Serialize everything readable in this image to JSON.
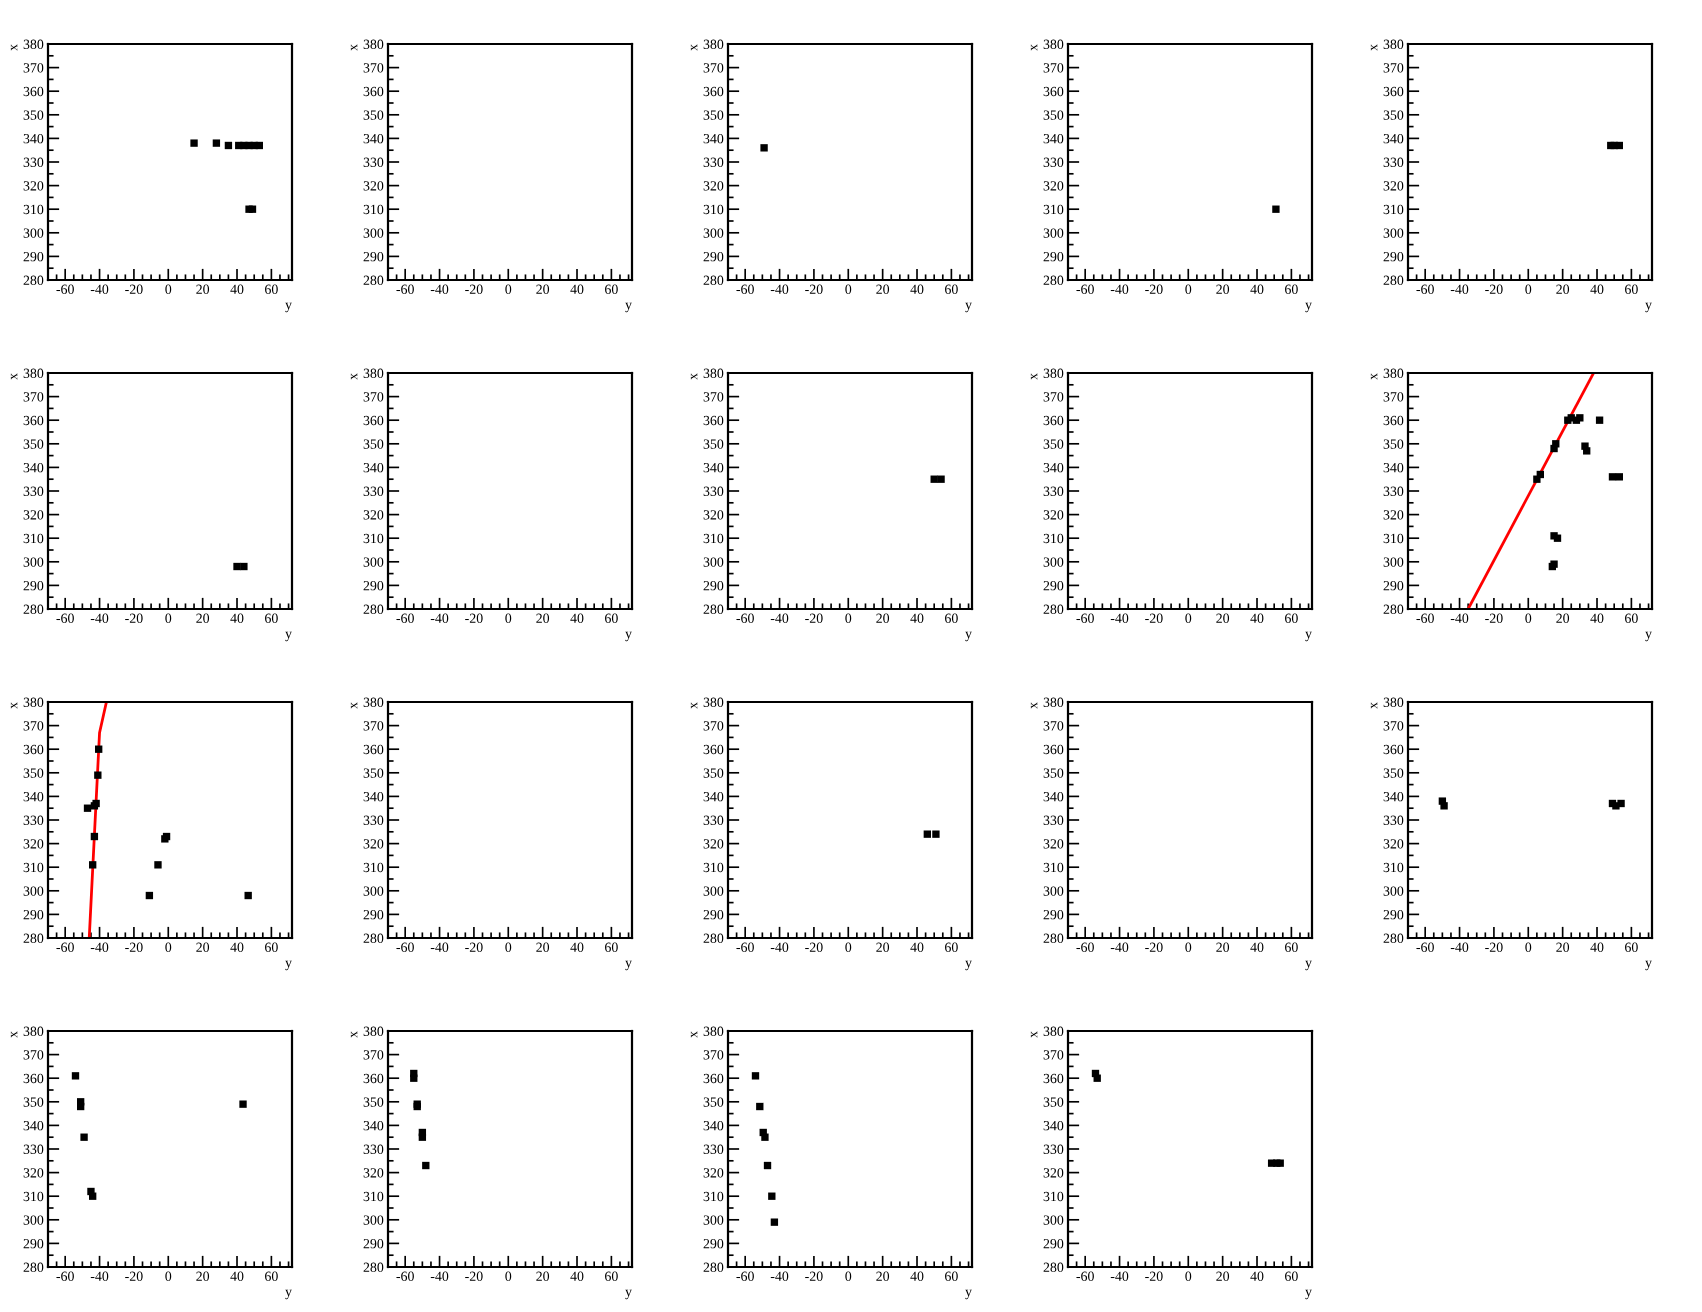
{
  "chart_data": [
    {
      "type": "scatter",
      "xlabel": "y",
      "ylabel": "x",
      "xlim": [
        -70,
        72
      ],
      "ylim": [
        280,
        380
      ],
      "xticks": [
        -60,
        -40,
        -20,
        0,
        20,
        40,
        60
      ],
      "yticks": [
        280,
        290,
        300,
        310,
        320,
        330,
        340,
        350,
        360,
        370,
        380
      ],
      "grid": false,
      "series": [
        {
          "marker": "square",
          "color": "#000000",
          "x": [
            15,
            28,
            35,
            41,
            44,
            47,
            50,
            53,
            47,
            49
          ],
          "values": [
            338,
            338,
            337,
            337,
            337,
            337,
            337,
            337,
            310,
            310
          ]
        }
      ]
    },
    {
      "type": "scatter",
      "xlabel": "y",
      "ylabel": "x",
      "xlim": [
        -70,
        72
      ],
      "ylim": [
        280,
        380
      ],
      "xticks": [
        -60,
        -40,
        -20,
        0,
        20,
        40,
        60
      ],
      "yticks": [
        280,
        290,
        300,
        310,
        320,
        330,
        340,
        350,
        360,
        370,
        380
      ],
      "grid": false
    },
    {
      "type": "scatter",
      "xlabel": "y",
      "ylabel": "x",
      "xlim": [
        -70,
        72
      ],
      "ylim": [
        280,
        380
      ],
      "xticks": [
        -60,
        -40,
        -20,
        0,
        20,
        40,
        60
      ],
      "yticks": [
        280,
        290,
        300,
        310,
        320,
        330,
        340,
        350,
        360,
        370,
        380
      ],
      "grid": false,
      "series": [
        {
          "marker": "square",
          "color": "#000000",
          "x": [
            -49
          ],
          "values": [
            336
          ]
        }
      ]
    },
    {
      "type": "scatter",
      "xlabel": "y",
      "ylabel": "x",
      "xlim": [
        -70,
        72
      ],
      "ylim": [
        280,
        380
      ],
      "xticks": [
        -60,
        -40,
        -20,
        0,
        20,
        40,
        60
      ],
      "yticks": [
        280,
        290,
        300,
        310,
        320,
        330,
        340,
        350,
        360,
        370,
        380
      ],
      "grid": false,
      "series": [
        {
          "marker": "square",
          "color": "#000000",
          "x": [
            51
          ],
          "values": [
            310
          ]
        }
      ]
    },
    {
      "type": "scatter",
      "xlabel": "y",
      "ylabel": "x",
      "xlim": [
        -70,
        72
      ],
      "ylim": [
        280,
        380
      ],
      "xticks": [
        -60,
        -40,
        -20,
        0,
        20,
        40,
        60
      ],
      "yticks": [
        280,
        290,
        300,
        310,
        320,
        330,
        340,
        350,
        360,
        370,
        380
      ],
      "grid": false,
      "series": [
        {
          "marker": "square",
          "color": "#000000",
          "x": [
            48,
            50,
            53
          ],
          "values": [
            337,
            337,
            337
          ]
        }
      ]
    },
    {
      "type": "scatter",
      "xlabel": "y",
      "ylabel": "x",
      "xlim": [
        -70,
        72
      ],
      "ylim": [
        280,
        380
      ],
      "xticks": [
        -60,
        -40,
        -20,
        0,
        20,
        40,
        60
      ],
      "yticks": [
        280,
        290,
        300,
        310,
        320,
        330,
        340,
        350,
        360,
        370,
        380
      ],
      "grid": false,
      "series": [
        {
          "marker": "square",
          "color": "#000000",
          "x": [
            40,
            44
          ],
          "values": [
            298,
            298
          ]
        }
      ]
    },
    {
      "type": "scatter",
      "xlabel": "y",
      "ylabel": "x",
      "xlim": [
        -70,
        72
      ],
      "ylim": [
        280,
        380
      ],
      "xticks": [
        -60,
        -40,
        -20,
        0,
        20,
        40,
        60
      ],
      "yticks": [
        280,
        290,
        300,
        310,
        320,
        330,
        340,
        350,
        360,
        370,
        380
      ],
      "grid": false
    },
    {
      "type": "scatter",
      "xlabel": "y",
      "ylabel": "x",
      "xlim": [
        -70,
        72
      ],
      "ylim": [
        280,
        380
      ],
      "xticks": [
        -60,
        -40,
        -20,
        0,
        20,
        40,
        60
      ],
      "yticks": [
        280,
        290,
        300,
        310,
        320,
        330,
        340,
        350,
        360,
        370,
        380
      ],
      "grid": false,
      "series": [
        {
          "marker": "square",
          "color": "#000000",
          "x": [
            50,
            54
          ],
          "values": [
            335,
            335
          ]
        }
      ]
    },
    {
      "type": "scatter",
      "xlabel": "y",
      "ylabel": "x",
      "xlim": [
        -70,
        72
      ],
      "ylim": [
        280,
        380
      ],
      "xticks": [
        -60,
        -40,
        -20,
        0,
        20,
        40,
        60
      ],
      "yticks": [
        280,
        290,
        300,
        310,
        320,
        330,
        340,
        350,
        360,
        370,
        380
      ],
      "grid": false
    },
    {
      "type": "scatter",
      "xlabel": "y",
      "ylabel": "x",
      "xlim": [
        -70,
        72
      ],
      "ylim": [
        280,
        380
      ],
      "xticks": [
        -60,
        -40,
        -20,
        0,
        20,
        40,
        60
      ],
      "yticks": [
        280,
        290,
        300,
        310,
        320,
        330,
        340,
        350,
        360,
        370,
        380
      ],
      "grid": false,
      "series": [
        {
          "marker": "square",
          "color": "#000000",
          "x": [
            5,
            7,
            15,
            16,
            23,
            25,
            28,
            30,
            33,
            34,
            41.5,
            49,
            53,
            15,
            17,
            14,
            15
          ],
          "values": [
            335,
            337,
            348,
            350,
            360,
            361,
            360,
            361,
            349,
            347,
            360,
            336,
            336,
            311,
            310,
            298,
            299
          ]
        },
        {
          "type": "line",
          "marker": "none",
          "color": "#ff0000",
          "x": [
            -35,
            38
          ],
          "values": [
            280,
            380
          ]
        }
      ]
    },
    {
      "type": "scatter",
      "xlabel": "y",
      "ylabel": "x",
      "xlim": [
        -70,
        72
      ],
      "ylim": [
        280,
        380
      ],
      "xticks": [
        -60,
        -40,
        -20,
        0,
        20,
        40,
        60
      ],
      "yticks": [
        280,
        290,
        300,
        310,
        320,
        330,
        340,
        350,
        360,
        370,
        380
      ],
      "grid": false,
      "series": [
        {
          "marker": "square",
          "color": "#000000",
          "x": [
            -47,
            -43,
            -42,
            -40.5,
            -41,
            -43,
            -44,
            -6,
            -2,
            -1,
            -11,
            46.5
          ],
          "values": [
            335,
            336,
            337,
            360,
            349,
            323,
            311,
            311,
            322,
            323,
            298,
            298
          ]
        },
        {
          "type": "line",
          "marker": "none",
          "color": "#ff0000",
          "x": [
            -46,
            -40,
            -36
          ],
          "values": [
            280,
            367,
            380
          ]
        }
      ]
    },
    {
      "type": "scatter",
      "xlabel": "y",
      "ylabel": "x",
      "xlim": [
        -70,
        72
      ],
      "ylim": [
        280,
        380
      ],
      "xticks": [
        -60,
        -40,
        -20,
        0,
        20,
        40,
        60
      ],
      "yticks": [
        280,
        290,
        300,
        310,
        320,
        330,
        340,
        350,
        360,
        370,
        380
      ],
      "grid": false
    },
    {
      "type": "scatter",
      "xlabel": "y",
      "ylabel": "x",
      "xlim": [
        -70,
        72
      ],
      "ylim": [
        280,
        380
      ],
      "xticks": [
        -60,
        -40,
        -20,
        0,
        20,
        40,
        60
      ],
      "yticks": [
        280,
        290,
        300,
        310,
        320,
        330,
        340,
        350,
        360,
        370,
        380
      ],
      "grid": false,
      "series": [
        {
          "marker": "square",
          "color": "#000000",
          "x": [
            46,
            51
          ],
          "values": [
            324,
            324
          ]
        }
      ]
    },
    {
      "type": "scatter",
      "xlabel": "y",
      "ylabel": "x",
      "xlim": [
        -70,
        72
      ],
      "ylim": [
        280,
        380
      ],
      "xticks": [
        -60,
        -40,
        -20,
        0,
        20,
        40,
        60
      ],
      "yticks": [
        280,
        290,
        300,
        310,
        320,
        330,
        340,
        350,
        360,
        370,
        380
      ],
      "grid": false
    },
    {
      "type": "scatter",
      "xlabel": "y",
      "ylabel": "x",
      "xlim": [
        -70,
        72
      ],
      "ylim": [
        280,
        380
      ],
      "xticks": [
        -60,
        -40,
        -20,
        0,
        20,
        40,
        60
      ],
      "yticks": [
        280,
        290,
        300,
        310,
        320,
        330,
        340,
        350,
        360,
        370,
        380
      ],
      "grid": false,
      "series": [
        {
          "marker": "square",
          "color": "#000000",
          "x": [
            -50,
            -49,
            49,
            51,
            54
          ],
          "values": [
            338,
            336,
            337,
            336,
            337
          ]
        }
      ]
    },
    {
      "type": "scatter",
      "xlabel": "y",
      "ylabel": "x",
      "xlim": [
        -70,
        72
      ],
      "ylim": [
        280,
        380
      ],
      "xticks": [
        -60,
        -40,
        -20,
        0,
        20,
        40,
        60
      ],
      "yticks": [
        280,
        290,
        300,
        310,
        320,
        330,
        340,
        350,
        360,
        370,
        380
      ],
      "grid": false,
      "series": [
        {
          "marker": "square",
          "color": "#000000",
          "x": [
            -54,
            -51,
            -51,
            -49,
            -45,
            -44,
            43.5
          ],
          "values": [
            361,
            350,
            348,
            335,
            312,
            310,
            349
          ]
        }
      ]
    },
    {
      "type": "scatter",
      "xlabel": "y",
      "ylabel": "x",
      "xlim": [
        -70,
        72
      ],
      "ylim": [
        280,
        380
      ],
      "xticks": [
        -60,
        -40,
        -20,
        0,
        20,
        40,
        60
      ],
      "yticks": [
        280,
        290,
        300,
        310,
        320,
        330,
        340,
        350,
        360,
        370,
        380
      ],
      "grid": false,
      "series": [
        {
          "marker": "square",
          "color": "#000000",
          "x": [
            -55,
            -55,
            -53,
            -53,
            -50,
            -50,
            -48
          ],
          "values": [
            362,
            360,
            349,
            348,
            337,
            335,
            323
          ]
        }
      ]
    },
    {
      "type": "scatter",
      "xlabel": "y",
      "ylabel": "x",
      "xlim": [
        -70,
        72
      ],
      "ylim": [
        280,
        380
      ],
      "xticks": [
        -60,
        -40,
        -20,
        0,
        20,
        40,
        60
      ],
      "yticks": [
        280,
        290,
        300,
        310,
        320,
        330,
        340,
        350,
        360,
        370,
        380
      ],
      "grid": false,
      "series": [
        {
          "marker": "square",
          "color": "#000000",
          "x": [
            -54,
            -51.5,
            -49.5,
            -48.5,
            -47,
            -44.5,
            -43
          ],
          "values": [
            361,
            348,
            337,
            335,
            323,
            310,
            299
          ]
        }
      ]
    },
    {
      "type": "scatter",
      "xlabel": "y",
      "ylabel": "x",
      "xlim": [
        -70,
        72
      ],
      "ylim": [
        280,
        380
      ],
      "xticks": [
        -60,
        -40,
        -20,
        0,
        20,
        40,
        60
      ],
      "yticks": [
        280,
        290,
        300,
        310,
        320,
        330,
        340,
        350,
        360,
        370,
        380
      ],
      "grid": false,
      "series": [
        {
          "marker": "square",
          "color": "#000000",
          "x": [
            -54,
            -53,
            48.5,
            51.5,
            53.5
          ],
          "values": [
            362,
            360,
            324,
            324,
            324
          ]
        }
      ]
    }
  ]
}
